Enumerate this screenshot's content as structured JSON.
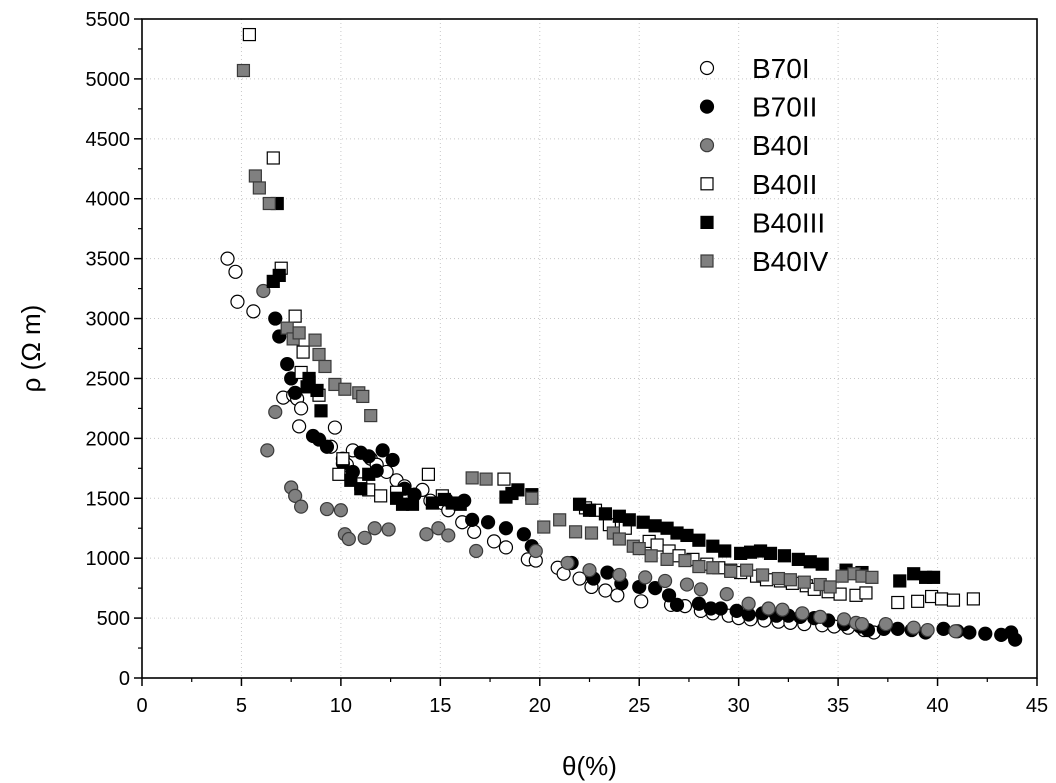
{
  "chart_data": {
    "type": "scatter",
    "xlabel": "θ(%)",
    "ylabel": "ρ (Ω m)",
    "xlim": [
      0,
      45
    ],
    "ylim": [
      0,
      5500
    ],
    "xticks": [
      0,
      5,
      10,
      15,
      20,
      25,
      30,
      35,
      40,
      45
    ],
    "yticks": [
      0,
      500,
      1000,
      1500,
      2000,
      2500,
      3000,
      3500,
      4000,
      4500,
      5000,
      5500
    ],
    "grid": true,
    "legend_position": "top-right",
    "series": [
      {
        "name": "B70I",
        "marker": "circle",
        "fill": "#ffffff",
        "stroke": "#000000",
        "points": [
          [
            4.3,
            3500
          ],
          [
            4.7,
            3390
          ],
          [
            4.8,
            3140
          ],
          [
            5.6,
            3060
          ],
          [
            7.1,
            2340
          ],
          [
            7.6,
            2360
          ],
          [
            7.8,
            2330
          ],
          [
            8.0,
            2250
          ],
          [
            7.9,
            2100
          ],
          [
            9.5,
            1930
          ],
          [
            9.7,
            2090
          ],
          [
            10.1,
            1830
          ],
          [
            10.3,
            1780
          ],
          [
            10.6,
            1900
          ],
          [
            11.5,
            1830
          ],
          [
            11.8,
            1780
          ],
          [
            12.3,
            1720
          ],
          [
            12.8,
            1650
          ],
          [
            13.2,
            1600
          ],
          [
            13.7,
            1530
          ],
          [
            14.1,
            1570
          ],
          [
            14.5,
            1480
          ],
          [
            15.1,
            1460
          ],
          [
            15.4,
            1400
          ],
          [
            16.1,
            1300
          ],
          [
            16.7,
            1220
          ],
          [
            17.7,
            1140
          ],
          [
            18.3,
            1090
          ],
          [
            19.4,
            990
          ],
          [
            19.8,
            980
          ],
          [
            20.9,
            920
          ],
          [
            21.2,
            870
          ],
          [
            22.0,
            830
          ],
          [
            22.6,
            760
          ],
          [
            23.3,
            730
          ],
          [
            23.9,
            690
          ],
          [
            25.1,
            640
          ],
          [
            26.6,
            610
          ],
          [
            27.3,
            600
          ],
          [
            28.1,
            560
          ],
          [
            28.7,
            540
          ],
          [
            29.5,
            520
          ],
          [
            30.0,
            500
          ],
          [
            30.6,
            490
          ],
          [
            31.3,
            480
          ],
          [
            32.0,
            470
          ],
          [
            32.6,
            460
          ],
          [
            33.3,
            450
          ],
          [
            34.2,
            440
          ],
          [
            34.8,
            430
          ],
          [
            35.5,
            420
          ],
          [
            36.3,
            400
          ],
          [
            36.8,
            380
          ]
        ]
      },
      {
        "name": "B70II",
        "marker": "circle",
        "fill": "#000000",
        "stroke": "#000000",
        "points": [
          [
            6.7,
            3000
          ],
          [
            6.9,
            2850
          ],
          [
            7.3,
            2620
          ],
          [
            7.5,
            2500
          ],
          [
            7.7,
            2380
          ],
          [
            8.6,
            2020
          ],
          [
            8.9,
            1990
          ],
          [
            9.3,
            1930
          ],
          [
            10.1,
            1790
          ],
          [
            10.6,
            1720
          ],
          [
            11.0,
            1880
          ],
          [
            11.4,
            1850
          ],
          [
            11.8,
            1730
          ],
          [
            12.1,
            1900
          ],
          [
            12.6,
            1820
          ],
          [
            13.2,
            1580
          ],
          [
            13.7,
            1530
          ],
          [
            15.3,
            1490
          ],
          [
            16.2,
            1480
          ],
          [
            16.6,
            1320
          ],
          [
            17.4,
            1300
          ],
          [
            18.3,
            1250
          ],
          [
            19.2,
            1200
          ],
          [
            19.6,
            1100
          ],
          [
            21.6,
            960
          ],
          [
            22.7,
            830
          ],
          [
            23.4,
            880
          ],
          [
            24.1,
            790
          ],
          [
            25.0,
            760
          ],
          [
            25.8,
            750
          ],
          [
            26.5,
            690
          ],
          [
            26.9,
            610
          ],
          [
            28.0,
            620
          ],
          [
            28.6,
            580
          ],
          [
            29.1,
            580
          ],
          [
            29.9,
            560
          ],
          [
            30.5,
            530
          ],
          [
            31.2,
            540
          ],
          [
            31.9,
            520
          ],
          [
            32.5,
            520
          ],
          [
            33.1,
            510
          ],
          [
            33.8,
            500
          ],
          [
            34.5,
            480
          ],
          [
            35.3,
            450
          ],
          [
            36.1,
            430
          ],
          [
            36.5,
            400
          ],
          [
            37.3,
            410
          ],
          [
            38.0,
            410
          ],
          [
            38.7,
            400
          ],
          [
            39.4,
            380
          ],
          [
            40.3,
            410
          ],
          [
            41.0,
            390
          ],
          [
            41.6,
            380
          ],
          [
            42.4,
            370
          ],
          [
            43.2,
            360
          ],
          [
            43.7,
            380
          ],
          [
            43.9,
            320
          ]
        ]
      },
      {
        "name": "B40I",
        "marker": "circle",
        "fill": "#808080",
        "stroke": "#3a3a3a",
        "points": [
          [
            6.1,
            3230
          ],
          [
            6.3,
            1900
          ],
          [
            6.7,
            2220
          ],
          [
            7.5,
            1590
          ],
          [
            7.7,
            1520
          ],
          [
            8.0,
            1430
          ],
          [
            9.3,
            1410
          ],
          [
            10.0,
            1400
          ],
          [
            10.2,
            1200
          ],
          [
            10.4,
            1160
          ],
          [
            11.2,
            1170
          ],
          [
            11.7,
            1250
          ],
          [
            12.4,
            1240
          ],
          [
            14.3,
            1200
          ],
          [
            14.9,
            1250
          ],
          [
            15.4,
            1190
          ],
          [
            16.8,
            1060
          ],
          [
            19.8,
            1060
          ],
          [
            21.4,
            960
          ],
          [
            22.5,
            900
          ],
          [
            24.0,
            860
          ],
          [
            25.3,
            840
          ],
          [
            26.3,
            810
          ],
          [
            27.4,
            780
          ],
          [
            28.1,
            740
          ],
          [
            29.4,
            700
          ],
          [
            30.5,
            620
          ],
          [
            31.5,
            580
          ],
          [
            32.2,
            570
          ],
          [
            33.2,
            540
          ],
          [
            34.1,
            510
          ],
          [
            35.3,
            490
          ],
          [
            35.9,
            460
          ],
          [
            36.2,
            450
          ],
          [
            37.4,
            450
          ],
          [
            38.8,
            420
          ],
          [
            39.5,
            400
          ],
          [
            40.9,
            390
          ]
        ]
      },
      {
        "name": "B40II",
        "marker": "square",
        "fill": "#ffffff",
        "stroke": "#000000",
        "points": [
          [
            5.4,
            5370
          ],
          [
            6.6,
            4340
          ],
          [
            7.0,
            3420
          ],
          [
            7.7,
            3020
          ],
          [
            8.1,
            2720
          ],
          [
            8.0,
            2550
          ],
          [
            8.4,
            2470
          ],
          [
            8.9,
            2360
          ],
          [
            9.9,
            1700
          ],
          [
            10.1,
            1830
          ],
          [
            11.0,
            1620
          ],
          [
            11.4,
            1570
          ],
          [
            12.0,
            1520
          ],
          [
            12.8,
            1550
          ],
          [
            14.4,
            1700
          ],
          [
            15.1,
            1520
          ],
          [
            18.2,
            1660
          ],
          [
            22.3,
            1420
          ],
          [
            22.8,
            1400
          ],
          [
            23.5,
            1280
          ],
          [
            24.3,
            1250
          ],
          [
            25.5,
            1140
          ],
          [
            25.9,
            1110
          ],
          [
            26.5,
            1060
          ],
          [
            27.0,
            1020
          ],
          [
            27.7,
            990
          ],
          [
            28.4,
            950
          ],
          [
            29.0,
            920
          ],
          [
            29.6,
            900
          ],
          [
            30.1,
            880
          ],
          [
            30.9,
            850
          ],
          [
            31.4,
            820
          ],
          [
            32.1,
            810
          ],
          [
            32.7,
            790
          ],
          [
            33.4,
            770
          ],
          [
            33.8,
            740
          ],
          [
            34.5,
            720
          ],
          [
            35.1,
            700
          ],
          [
            35.9,
            690
          ],
          [
            36.4,
            710
          ],
          [
            38.0,
            630
          ],
          [
            39.0,
            640
          ],
          [
            39.7,
            680
          ],
          [
            40.2,
            660
          ],
          [
            40.8,
            650
          ],
          [
            41.8,
            660
          ]
        ]
      },
      {
        "name": "B40III",
        "marker": "square",
        "fill": "#000000",
        "stroke": "#000000",
        "points": [
          [
            6.8,
            3960
          ],
          [
            6.6,
            3310
          ],
          [
            6.9,
            3360
          ],
          [
            8.3,
            2430
          ],
          [
            8.4,
            2500
          ],
          [
            8.8,
            2400
          ],
          [
            9.0,
            2230
          ],
          [
            10.5,
            1650
          ],
          [
            11.0,
            1580
          ],
          [
            11.4,
            1700
          ],
          [
            12.8,
            1500
          ],
          [
            13.1,
            1450
          ],
          [
            13.6,
            1450
          ],
          [
            14.6,
            1460
          ],
          [
            15.2,
            1490
          ],
          [
            15.6,
            1460
          ],
          [
            16.0,
            1450
          ],
          [
            18.3,
            1510
          ],
          [
            18.6,
            1540
          ],
          [
            18.9,
            1570
          ],
          [
            19.6,
            1530
          ],
          [
            22.0,
            1450
          ],
          [
            22.5,
            1400
          ],
          [
            23.3,
            1370
          ],
          [
            24.0,
            1350
          ],
          [
            24.5,
            1320
          ],
          [
            25.2,
            1300
          ],
          [
            25.8,
            1270
          ],
          [
            26.4,
            1250
          ],
          [
            26.9,
            1210
          ],
          [
            27.4,
            1190
          ],
          [
            28.0,
            1150
          ],
          [
            28.7,
            1100
          ],
          [
            29.3,
            1060
          ],
          [
            30.1,
            1040
          ],
          [
            30.6,
            1050
          ],
          [
            31.1,
            1060
          ],
          [
            31.6,
            1040
          ],
          [
            32.3,
            1020
          ],
          [
            33.0,
            990
          ],
          [
            33.6,
            970
          ],
          [
            34.2,
            950
          ],
          [
            35.4,
            900
          ],
          [
            36.2,
            880
          ],
          [
            38.1,
            810
          ],
          [
            38.8,
            870
          ],
          [
            39.4,
            840
          ],
          [
            39.8,
            840
          ]
        ]
      },
      {
        "name": "B40IV",
        "marker": "square",
        "fill": "#808080",
        "stroke": "#3a3a3a",
        "points": [
          [
            5.1,
            5070
          ],
          [
            5.7,
            4190
          ],
          [
            5.9,
            4090
          ],
          [
            6.4,
            3960
          ],
          [
            7.3,
            2920
          ],
          [
            7.6,
            2830
          ],
          [
            7.9,
            2880
          ],
          [
            8.7,
            2820
          ],
          [
            8.9,
            2700
          ],
          [
            9.2,
            2600
          ],
          [
            9.7,
            2450
          ],
          [
            10.2,
            2410
          ],
          [
            10.9,
            2380
          ],
          [
            11.1,
            2350
          ],
          [
            11.5,
            2190
          ],
          [
            16.6,
            1670
          ],
          [
            17.3,
            1660
          ],
          [
            19.6,
            1500
          ],
          [
            20.2,
            1260
          ],
          [
            21.0,
            1320
          ],
          [
            21.8,
            1220
          ],
          [
            22.6,
            1210
          ],
          [
            23.7,
            1210
          ],
          [
            24.0,
            1160
          ],
          [
            24.7,
            1100
          ],
          [
            25.0,
            1080
          ],
          [
            25.6,
            1020
          ],
          [
            26.4,
            990
          ],
          [
            27.3,
            980
          ],
          [
            28.0,
            930
          ],
          [
            28.7,
            920
          ],
          [
            29.6,
            890
          ],
          [
            30.4,
            900
          ],
          [
            31.2,
            860
          ],
          [
            32.0,
            830
          ],
          [
            32.6,
            820
          ],
          [
            33.3,
            800
          ],
          [
            34.1,
            780
          ],
          [
            34.6,
            760
          ],
          [
            35.2,
            850
          ],
          [
            35.8,
            870
          ],
          [
            36.2,
            850
          ],
          [
            36.7,
            840
          ]
        ]
      }
    ]
  }
}
